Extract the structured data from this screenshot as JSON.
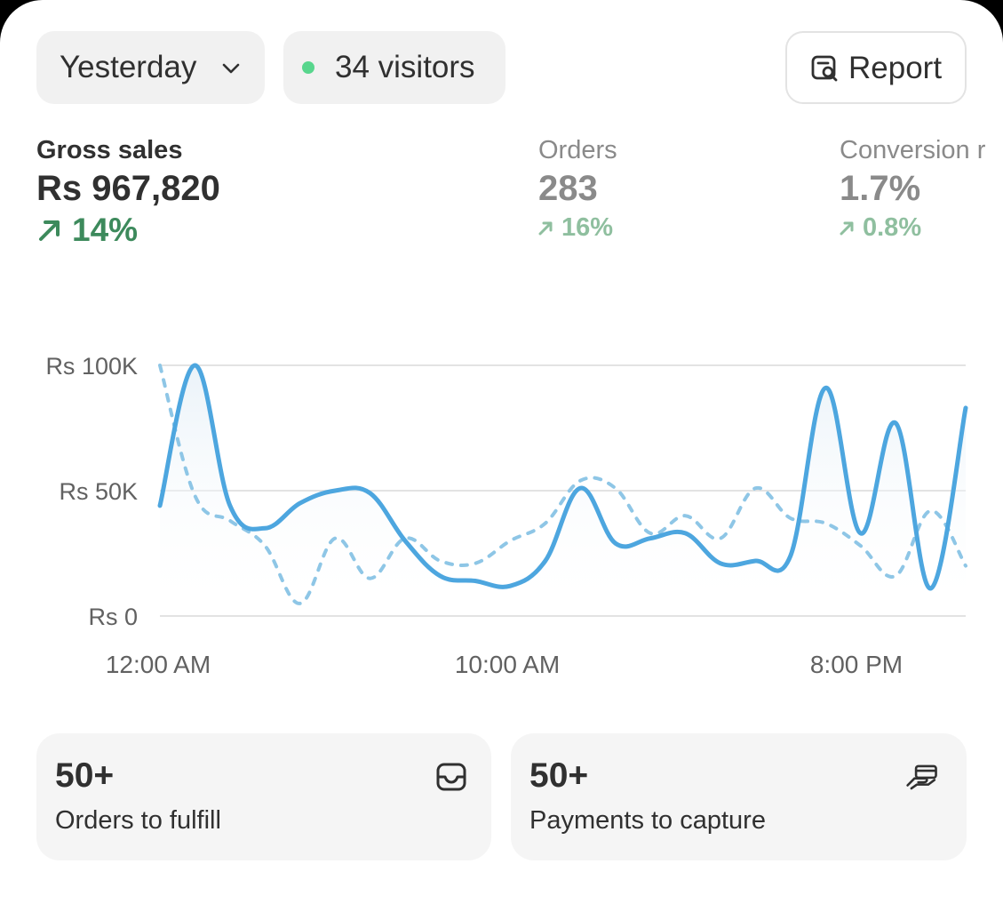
{
  "filters": {
    "date_range": "Yesterday",
    "visitors": "34 visitors",
    "report_label": "Report"
  },
  "metrics": [
    {
      "title": "Gross sales",
      "value": "Rs 967,820",
      "delta": "14%"
    },
    {
      "title": "Orders",
      "value": "283",
      "delta": "16%"
    },
    {
      "title": "Conversion r",
      "value": "1.7%",
      "delta": "0.8%"
    }
  ],
  "chart_data": {
    "type": "line",
    "x_tick_labels": [
      "12:00 AM",
      "10:00 AM",
      "8:00 PM"
    ],
    "y_tick_labels": [
      "Rs 100K",
      "Rs 50K",
      "Rs 0"
    ],
    "ylim": [
      0,
      100000
    ],
    "grid": true,
    "colors": {
      "current": "#4da6df",
      "comparison": "#8ec6e6"
    },
    "series": [
      {
        "style": "solid",
        "values": [
          44000,
          100000,
          44000,
          35000,
          45000,
          50000,
          49000,
          30000,
          16000,
          14000,
          12000,
          22000,
          51000,
          29000,
          31000,
          33000,
          21000,
          22000,
          24000,
          91000,
          33000,
          77000,
          11000,
          83000
        ]
      },
      {
        "style": "dashed",
        "values": [
          100000,
          48000,
          38000,
          28000,
          5000,
          31000,
          15000,
          31000,
          22000,
          21000,
          30000,
          37000,
          54000,
          51000,
          33000,
          40000,
          31000,
          51000,
          39000,
          37000,
          28000,
          16000,
          42000,
          20000
        ]
      }
    ]
  },
  "tiles": [
    {
      "count": "50+",
      "label": "Orders to fulfill"
    },
    {
      "count": "50+",
      "label": "Payments to capture"
    }
  ]
}
